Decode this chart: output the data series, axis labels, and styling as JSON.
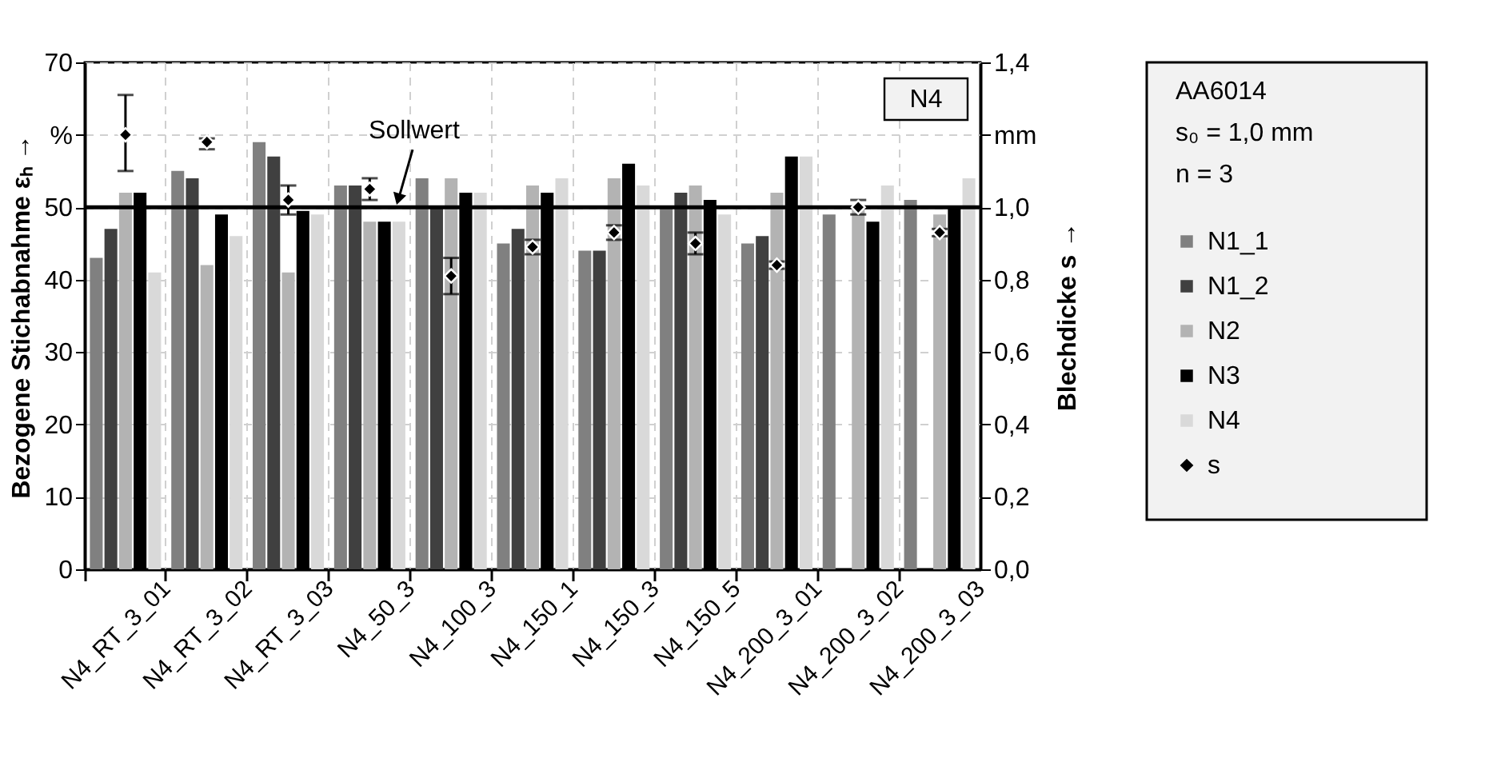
{
  "chart_data": {
    "type": "bar",
    "categories": [
      "N4_RT_3_01",
      "N4_RT_3_02",
      "N4_RT_3_03",
      "N4_50_3",
      "N4_100_3",
      "N4_150_1",
      "N4_150_3",
      "N4_150_5",
      "N4_200_3_01",
      "N4_200_3_02",
      "N4_200_3_03"
    ],
    "series": [
      {
        "name": "N1_1",
        "color": "#808080",
        "values": [
          43,
          55,
          59,
          53,
          54,
          45,
          44,
          50,
          45,
          49,
          51
        ]
      },
      {
        "name": "N1_2",
        "color": "#404040",
        "values": [
          47,
          54,
          57,
          53,
          50,
          47,
          44,
          52,
          46,
          null,
          null
        ]
      },
      {
        "name": "N2",
        "color": "#b3b3b3",
        "values": [
          52,
          42,
          41,
          48,
          54,
          53,
          54,
          53,
          52,
          50,
          49
        ]
      },
      {
        "name": "N3",
        "color": "#000000",
        "values": [
          52,
          49,
          49.5,
          48,
          52,
          52,
          56,
          51,
          57,
          48,
          50
        ]
      },
      {
        "name": "N4",
        "color": "#d9d9d9",
        "values": [
          41,
          46,
          49,
          48,
          52,
          54,
          53,
          49,
          57,
          53,
          54
        ]
      },
      {
        "name": "s",
        "type": "scatter",
        "axis": "y2",
        "marker": "diamond",
        "color": "#000000",
        "values": [
          1.2,
          1.18,
          1.02,
          1.05,
          0.81,
          0.89,
          0.93,
          0.9,
          0.84,
          1.0,
          0.93
        ],
        "errors": [
          [
            1.1,
            1.31
          ],
          [
            1.16,
            1.19
          ],
          [
            0.98,
            1.06
          ],
          [
            1.02,
            1.08
          ],
          [
            0.76,
            0.86
          ],
          [
            0.87,
            0.91
          ],
          [
            0.91,
            0.95
          ],
          [
            0.87,
            0.93
          ],
          [
            0.83,
            0.85
          ],
          [
            0.98,
            1.02
          ],
          [
            0.92,
            0.94
          ]
        ]
      }
    ],
    "ylabel": "Bezogene Stichabnahme εₕ →",
    "y2label": "Blechdicke s →",
    "ylim": [
      0,
      70
    ],
    "yticks": [
      0,
      10,
      20,
      30,
      40,
      50,
      {
        "value": 60,
        "label": "%"
      },
      70
    ],
    "y2lim": [
      0,
      1.4
    ],
    "y2ticks": [
      {
        "value": 0,
        "label": "0,0"
      },
      {
        "value": 0.2,
        "label": "0,2"
      },
      {
        "value": 0.4,
        "label": "0,4"
      },
      {
        "value": 0.6,
        "label": "0,6"
      },
      {
        "value": 0.8,
        "label": "0,8"
      },
      {
        "value": 1.0,
        "label": "1,0"
      },
      {
        "value": 1.2,
        "label": "mm"
      },
      {
        "value": 1.4,
        "label": "1,4"
      }
    ],
    "ref_lines": [
      {
        "axis": "y",
        "value": 50,
        "label": "Sollwert",
        "color": "#000000"
      }
    ],
    "annotations": [
      "N4"
    ],
    "legend": "right",
    "legend_title": "AA6014\ns₀ = 1,0 mm\nn = 3",
    "grid": true
  }
}
